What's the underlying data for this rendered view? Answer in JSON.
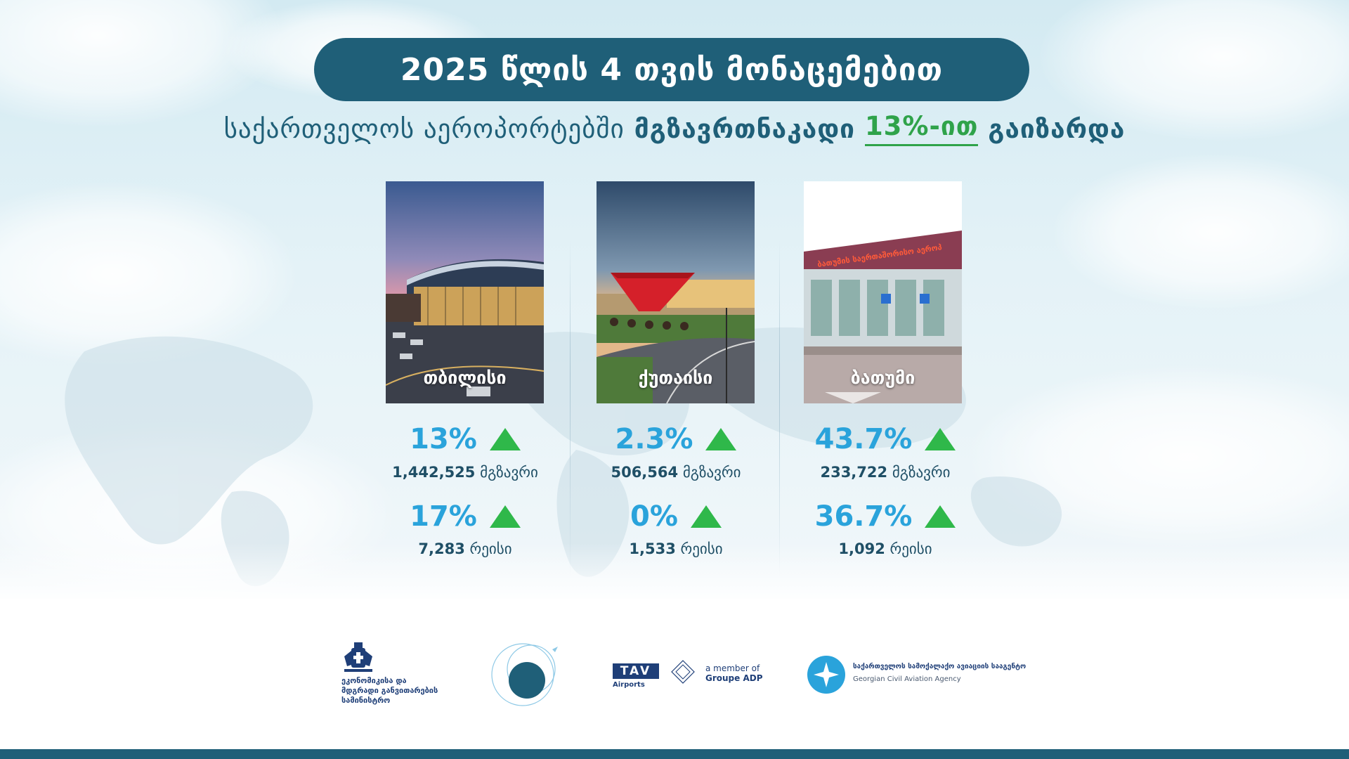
{
  "header": {
    "title": "2025 წლის 4 თვის მონაცემებით",
    "subtitle_part1": "საქართველოს აეროპორტებში",
    "subtitle_part2": "მგზავრთნაკადი",
    "subtitle_highlight": "13%-ით",
    "subtitle_part3": "გაიზარდა"
  },
  "airports": [
    {
      "name": "თბილისი",
      "passenger_change": "13%",
      "passenger_count": "1,442,525",
      "passenger_unit": "მგზავრი",
      "flight_change": "17%",
      "flight_count": "7,283",
      "flight_unit": "რეისი"
    },
    {
      "name": "ქუთაისი",
      "passenger_change": "2.3%",
      "passenger_count": "506,564",
      "passenger_unit": "მგზავრი",
      "flight_change": "0%",
      "flight_count": "1,533",
      "flight_unit": "რეისი"
    },
    {
      "name": "ბათუმი",
      "passenger_change": "43.7%",
      "passenger_count": "233,722",
      "passenger_unit": "მგზავრი",
      "flight_change": "36.7%",
      "flight_count": "1,092",
      "flight_unit": "რეისი"
    }
  ],
  "logos": {
    "ministry_line1": "ეკონომიკისა და",
    "ministry_line2": "მდგრადი განვითარების",
    "ministry_line3": "სამინისტრო",
    "tav_name": "TAV",
    "tav_sub": "Airports",
    "adp_line1": "a member of",
    "adp_line2": "Groupe ADP",
    "gcaa_ka": "საქართველოს სამოქალაქო ავიაციის სააგენტო",
    "gcaa_en": "Georgian Civil Aviation Agency"
  },
  "colors": {
    "primary": "#1f5f78",
    "accent_blue": "#2aa3db",
    "accent_green": "#2fb84a"
  }
}
